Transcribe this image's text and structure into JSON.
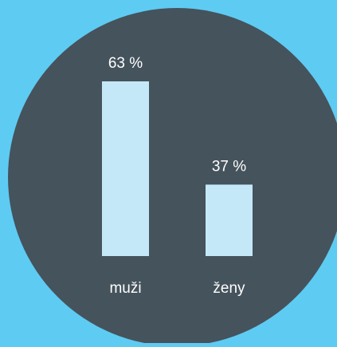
{
  "chart_data": {
    "type": "bar",
    "categories": [
      "muži",
      "ženy"
    ],
    "values": [
      63,
      37
    ],
    "value_labels": [
      "63 %",
      "37 %"
    ],
    "color": "#c5e8f9",
    "ylim": [
      19,
      63
    ]
  }
}
